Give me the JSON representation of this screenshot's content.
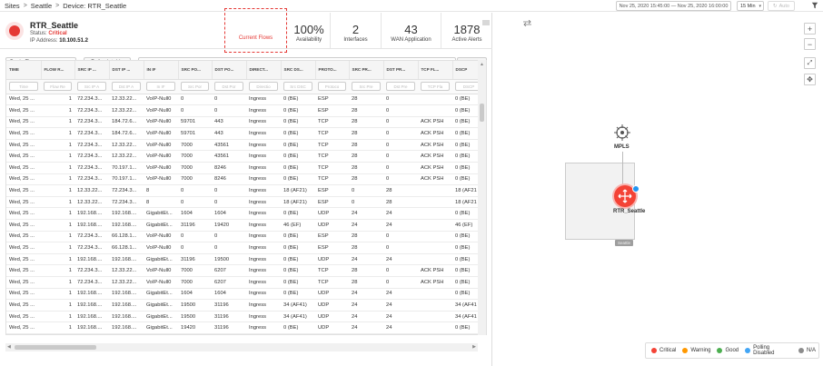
{
  "breadcrumb": {
    "sites": "Sites",
    "site": "Seattle",
    "device": "Device: RTR_Seattle"
  },
  "toolbar_top": {
    "date_range": "Nov 25, 2020 15:45:00 — Nov 25, 2020 16:00:00",
    "interval": "15 Min",
    "auto_label": "Auto"
  },
  "device": {
    "name": "RTR_Seattle",
    "status_label": "Status:",
    "status": "Critical",
    "ip_label": "IP Address:",
    "ip": "10.100.51.2"
  },
  "kpis": {
    "current_flows_label": "Current Flows",
    "availability": {
      "value": "100%",
      "label": "Availability"
    },
    "interfaces": {
      "value": "2",
      "label": "Interfaces"
    },
    "wan_app": {
      "value": "43",
      "label": "WAN Application"
    },
    "alerts": {
      "value": "1878",
      "label": "Active Alerts"
    }
  },
  "flow_toolbar": {
    "flow_type": "Basic Flow",
    "refresh_label": "Refresh table",
    "filter_placeholder": "Enter Filter Request Here",
    "apply_label": "Apply filter"
  },
  "table": {
    "columns": [
      "TIME",
      "FLOW R...",
      "SRC IP ...",
      "DST IP ...",
      "IN IF",
      "SRC PO...",
      "DST PO...",
      "DIRECT...",
      "SRC DS...",
      "PROTO...",
      "SRC PR...",
      "DST PR...",
      "TCP FL...",
      "DSCP"
    ],
    "filters": [
      "Time",
      "Flow Re",
      "Src IP A",
      "Dst IP A",
      "In IF",
      "Src Por",
      "Dst Por",
      "Directio",
      "Src DSC",
      "Protoco",
      "Src Pre",
      "Dst Pre",
      "TCP Fla",
      "DSCP"
    ],
    "rows": [
      [
        "Wed, 25 ...",
        "1",
        "72.234.3...",
        "12.33.22...",
        "VoIP-Null0",
        "0",
        "0",
        "Ingress",
        "0 (BE)",
        "ESP",
        "28",
        "0",
        "",
        "0 (BE)"
      ],
      [
        "Wed, 25 ...",
        "1",
        "72.234.3...",
        "12.33.22...",
        "VoIP-Null0",
        "0",
        "0",
        "Ingress",
        "0 (BE)",
        "ESP",
        "28",
        "0",
        "",
        "0 (BE)"
      ],
      [
        "Wed, 25 ...",
        "1",
        "72.234.3...",
        "184.72.6...",
        "VoIP-Null0",
        "59701",
        "443",
        "Ingress",
        "0 (BE)",
        "TCP",
        "28",
        "0",
        "ACK PSH",
        "0 (BE)"
      ],
      [
        "Wed, 25 ...",
        "1",
        "72.234.3...",
        "184.72.6...",
        "VoIP-Null0",
        "59701",
        "443",
        "Ingress",
        "0 (BE)",
        "TCP",
        "28",
        "0",
        "ACK PSH",
        "0 (BE)"
      ],
      [
        "Wed, 25 ...",
        "1",
        "72.234.3...",
        "12.33.22...",
        "VoIP-Null0",
        "7000",
        "43561",
        "Ingress",
        "0 (BE)",
        "TCP",
        "28",
        "0",
        "ACK PSH",
        "0 (BE)"
      ],
      [
        "Wed, 25 ...",
        "1",
        "72.234.3...",
        "12.33.22...",
        "VoIP-Null0",
        "7000",
        "43561",
        "Ingress",
        "0 (BE)",
        "TCP",
        "28",
        "0",
        "ACK PSH",
        "0 (BE)"
      ],
      [
        "Wed, 25 ...",
        "1",
        "72.234.3...",
        "70.197.1...",
        "VoIP-Null0",
        "7000",
        "8246",
        "Ingress",
        "0 (BE)",
        "TCP",
        "28",
        "0",
        "ACK PSH",
        "0 (BE)"
      ],
      [
        "Wed, 25 ...",
        "1",
        "72.234.3...",
        "70.197.1...",
        "VoIP-Null0",
        "7000",
        "8246",
        "Ingress",
        "0 (BE)",
        "TCP",
        "28",
        "0",
        "ACK PSH",
        "0 (BE)"
      ],
      [
        "Wed, 25 ...",
        "1",
        "12.33.22...",
        "72.234.3...",
        "8",
        "0",
        "0",
        "Ingress",
        "18 (AF21)",
        "ESP",
        "0",
        "28",
        "",
        "18 (AF21"
      ],
      [
        "Wed, 25 ...",
        "1",
        "12.33.22...",
        "72.234.3...",
        "8",
        "0",
        "0",
        "Ingress",
        "18 (AF21)",
        "ESP",
        "0",
        "28",
        "",
        "18 (AF21"
      ],
      [
        "Wed, 25 ...",
        "1",
        "192.168....",
        "192.168....",
        "GigabitEt...",
        "1604",
        "1604",
        "Ingress",
        "0 (BE)",
        "UDP",
        "24",
        "24",
        "",
        "0 (BE)"
      ],
      [
        "Wed, 25 ...",
        "1",
        "192.168....",
        "192.168....",
        "GigabitEt...",
        "31196",
        "19420",
        "Ingress",
        "46 (EF)",
        "UDP",
        "24",
        "24",
        "",
        "46 (EF)"
      ],
      [
        "Wed, 25 ...",
        "1",
        "72.234.3...",
        "66.128.1...",
        "VoIP-Null0",
        "0",
        "0",
        "Ingress",
        "0 (BE)",
        "ESP",
        "28",
        "0",
        "",
        "0 (BE)"
      ],
      [
        "Wed, 25 ...",
        "1",
        "72.234.3...",
        "66.128.1...",
        "VoIP-Null0",
        "0",
        "0",
        "Ingress",
        "0 (BE)",
        "ESP",
        "28",
        "0",
        "",
        "0 (BE)"
      ],
      [
        "Wed, 25 ...",
        "1",
        "192.168....",
        "192.168....",
        "GigabitEt...",
        "31196",
        "19500",
        "Ingress",
        "0 (BE)",
        "UDP",
        "24",
        "24",
        "",
        "0 (BE)"
      ],
      [
        "Wed, 25 ...",
        "1",
        "72.234.3...",
        "12.33.22...",
        "VoIP-Null0",
        "7000",
        "6207",
        "Ingress",
        "0 (BE)",
        "TCP",
        "28",
        "0",
        "ACK PSH",
        "0 (BE)"
      ],
      [
        "Wed, 25 ...",
        "1",
        "72.234.3...",
        "12.33.22...",
        "VoIP-Null0",
        "7000",
        "6207",
        "Ingress",
        "0 (BE)",
        "TCP",
        "28",
        "0",
        "ACK PSH",
        "0 (BE)"
      ],
      [
        "Wed, 25 ...",
        "1",
        "192.168....",
        "192.168....",
        "GigabitEt...",
        "1604",
        "1604",
        "Ingress",
        "0 (BE)",
        "UDP",
        "24",
        "24",
        "",
        "0 (BE)"
      ],
      [
        "Wed, 25 ...",
        "1",
        "192.168....",
        "192.168....",
        "GigabitEt...",
        "19500",
        "31196",
        "Ingress",
        "34 (AF41)",
        "UDP",
        "24",
        "24",
        "",
        "34 (AF41"
      ],
      [
        "Wed, 25 ...",
        "1",
        "192.168....",
        "192.168....",
        "GigabitEt...",
        "19500",
        "31196",
        "Ingress",
        "34 (AF41)",
        "UDP",
        "24",
        "24",
        "",
        "34 (AF41"
      ],
      [
        "Wed, 25 ...",
        "1",
        "192.168....",
        "192.168....",
        "GigabitEt...",
        "19420",
        "31196",
        "Ingress",
        "0 (BE)",
        "UDP",
        "24",
        "24",
        "",
        "0 (BE)"
      ]
    ]
  },
  "topology": {
    "mpls_label": "MPLS",
    "router_label": "RTR_Seattle",
    "site_tag": "Seattle"
  },
  "legend": [
    {
      "label": "Critical",
      "color": "#f44336"
    },
    {
      "label": "Warning",
      "color": "#ff9800"
    },
    {
      "label": "Good",
      "color": "#4caf50"
    },
    {
      "label": "Polling Disabled",
      "color": "#42a5f5"
    },
    {
      "label": "N/A",
      "color": "#8c8c8c"
    }
  ]
}
